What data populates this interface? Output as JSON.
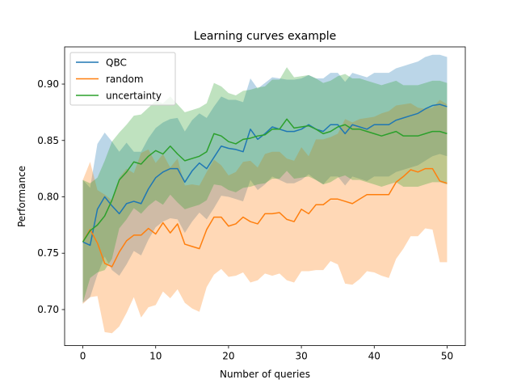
{
  "chart_data": {
    "type": "line",
    "title": "Learning curves example",
    "xlabel": "Number of queries",
    "ylabel": "Performance",
    "xlim": [
      -2.5,
      52.5
    ],
    "ylim": [
      0.668,
      0.933
    ],
    "xticks": [
      0,
      10,
      20,
      30,
      40,
      50
    ],
    "yticks": [
      0.7,
      0.75,
      0.8,
      0.85,
      0.9
    ],
    "ytick_labels": [
      "0.70",
      "0.75",
      "0.80",
      "0.85",
      "0.90"
    ],
    "grid": false,
    "legend_position": "top-left",
    "x": [
      0,
      1,
      2,
      3,
      4,
      5,
      6,
      7,
      8,
      9,
      10,
      11,
      12,
      13,
      14,
      15,
      16,
      17,
      18,
      19,
      20,
      21,
      22,
      23,
      24,
      25,
      26,
      27,
      28,
      29,
      30,
      31,
      32,
      33,
      34,
      35,
      36,
      37,
      38,
      39,
      40,
      41,
      42,
      43,
      44,
      45,
      46,
      47,
      48,
      49,
      50
    ],
    "series": [
      {
        "name": "QBC",
        "color": "#1f77b4",
        "values": [
          0.76,
          0.757,
          0.789,
          0.8,
          0.792,
          0.785,
          0.794,
          0.796,
          0.794,
          0.807,
          0.817,
          0.822,
          0.825,
          0.825,
          0.813,
          0.823,
          0.83,
          0.825,
          0.835,
          0.845,
          0.843,
          0.842,
          0.84,
          0.86,
          0.851,
          0.856,
          0.862,
          0.86,
          0.858,
          0.858,
          0.86,
          0.864,
          0.86,
          0.858,
          0.864,
          0.864,
          0.856,
          0.864,
          0.862,
          0.86,
          0.864,
          0.864,
          0.864,
          0.868,
          0.87,
          0.872,
          0.874,
          0.878,
          0.881,
          0.882,
          0.88
        ],
        "lower": [
          0.706,
          0.711,
          0.731,
          0.747,
          0.735,
          0.73,
          0.74,
          0.752,
          0.748,
          0.762,
          0.773,
          0.778,
          0.781,
          0.78,
          0.768,
          0.778,
          0.786,
          0.78,
          0.79,
          0.801,
          0.8,
          0.798,
          0.796,
          0.815,
          0.806,
          0.811,
          0.818,
          0.815,
          0.812,
          0.812,
          0.815,
          0.82,
          0.815,
          0.811,
          0.818,
          0.818,
          0.81,
          0.818,
          0.816,
          0.814,
          0.818,
          0.818,
          0.818,
          0.822,
          0.824,
          0.826,
          0.828,
          0.832,
          0.836,
          0.838,
          0.836
        ],
        "upper": [
          0.815,
          0.808,
          0.847,
          0.857,
          0.849,
          0.84,
          0.848,
          0.84,
          0.84,
          0.852,
          0.861,
          0.866,
          0.869,
          0.87,
          0.858,
          0.868,
          0.874,
          0.87,
          0.88,
          0.889,
          0.886,
          0.886,
          0.884,
          0.905,
          0.896,
          0.901,
          0.906,
          0.905,
          0.904,
          0.904,
          0.905,
          0.908,
          0.905,
          0.905,
          0.91,
          0.91,
          0.902,
          0.91,
          0.908,
          0.906,
          0.91,
          0.91,
          0.91,
          0.914,
          0.916,
          0.918,
          0.92,
          0.924,
          0.926,
          0.926,
          0.924
        ]
      },
      {
        "name": "random",
        "color": "#ff7f0e",
        "values": [
          0.76,
          0.771,
          0.759,
          0.741,
          0.738,
          0.751,
          0.761,
          0.766,
          0.766,
          0.772,
          0.767,
          0.777,
          0.768,
          0.776,
          0.758,
          0.756,
          0.754,
          0.771,
          0.782,
          0.782,
          0.774,
          0.776,
          0.782,
          0.778,
          0.776,
          0.785,
          0.785,
          0.786,
          0.78,
          0.778,
          0.789,
          0.785,
          0.793,
          0.793,
          0.798,
          0.798,
          0.796,
          0.794,
          0.798,
          0.802,
          0.802,
          0.802,
          0.802,
          0.813,
          0.818,
          0.824,
          0.822,
          0.825,
          0.825,
          0.814,
          0.812
        ],
        "lower": [
          0.705,
          0.711,
          0.712,
          0.68,
          0.679,
          0.685,
          0.697,
          0.711,
          0.693,
          0.702,
          0.704,
          0.716,
          0.71,
          0.718,
          0.706,
          0.701,
          0.698,
          0.72,
          0.731,
          0.736,
          0.729,
          0.73,
          0.733,
          0.724,
          0.726,
          0.732,
          0.73,
          0.732,
          0.726,
          0.724,
          0.734,
          0.734,
          0.735,
          0.735,
          0.743,
          0.74,
          0.723,
          0.722,
          0.727,
          0.734,
          0.733,
          0.73,
          0.728,
          0.745,
          0.754,
          0.765,
          0.765,
          0.772,
          0.771,
          0.742,
          0.742
        ],
        "upper": [
          0.815,
          0.831,
          0.806,
          0.802,
          0.797,
          0.817,
          0.825,
          0.821,
          0.839,
          0.842,
          0.83,
          0.838,
          0.826,
          0.834,
          0.81,
          0.811,
          0.81,
          0.822,
          0.833,
          0.828,
          0.819,
          0.822,
          0.831,
          0.832,
          0.826,
          0.838,
          0.84,
          0.84,
          0.834,
          0.832,
          0.844,
          0.836,
          0.851,
          0.851,
          0.853,
          0.856,
          0.869,
          0.866,
          0.869,
          0.87,
          0.871,
          0.874,
          0.876,
          0.881,
          0.882,
          0.883,
          0.879,
          0.878,
          0.879,
          0.886,
          0.882
        ]
      },
      {
        "name": "uncertainty",
        "color": "#2ca02c",
        "values": [
          0.76,
          0.77,
          0.775,
          0.783,
          0.797,
          0.815,
          0.822,
          0.831,
          0.829,
          0.836,
          0.841,
          0.838,
          0.845,
          0.838,
          0.832,
          0.834,
          0.836,
          0.84,
          0.856,
          0.854,
          0.849,
          0.847,
          0.851,
          0.852,
          0.854,
          0.855,
          0.86,
          0.86,
          0.869,
          0.861,
          0.862,
          0.863,
          0.86,
          0.856,
          0.858,
          0.862,
          0.864,
          0.86,
          0.86,
          0.858,
          0.856,
          0.854,
          0.856,
          0.858,
          0.854,
          0.854,
          0.854,
          0.856,
          0.858,
          0.858,
          0.856
        ],
        "lower": [
          0.706,
          0.728,
          0.733,
          0.735,
          0.745,
          0.772,
          0.78,
          0.79,
          0.785,
          0.792,
          0.797,
          0.793,
          0.802,
          0.795,
          0.789,
          0.791,
          0.793,
          0.797,
          0.811,
          0.81,
          0.806,
          0.804,
          0.808,
          0.809,
          0.811,
          0.812,
          0.816,
          0.816,
          0.823,
          0.816,
          0.817,
          0.818,
          0.815,
          0.811,
          0.813,
          0.817,
          0.819,
          0.815,
          0.815,
          0.813,
          0.811,
          0.809,
          0.811,
          0.813,
          0.809,
          0.809,
          0.809,
          0.811,
          0.813,
          0.813,
          0.811
        ],
        "upper": [
          0.815,
          0.812,
          0.817,
          0.832,
          0.849,
          0.857,
          0.864,
          0.872,
          0.873,
          0.879,
          0.885,
          0.883,
          0.889,
          0.882,
          0.875,
          0.877,
          0.879,
          0.883,
          0.901,
          0.898,
          0.892,
          0.89,
          0.894,
          0.895,
          0.897,
          0.898,
          0.904,
          0.904,
          0.915,
          0.906,
          0.907,
          0.908,
          0.905,
          0.901,
          0.903,
          0.907,
          0.909,
          0.905,
          0.905,
          0.903,
          0.901,
          0.899,
          0.901,
          0.903,
          0.899,
          0.899,
          0.899,
          0.901,
          0.903,
          0.903,
          0.901
        ]
      }
    ]
  }
}
